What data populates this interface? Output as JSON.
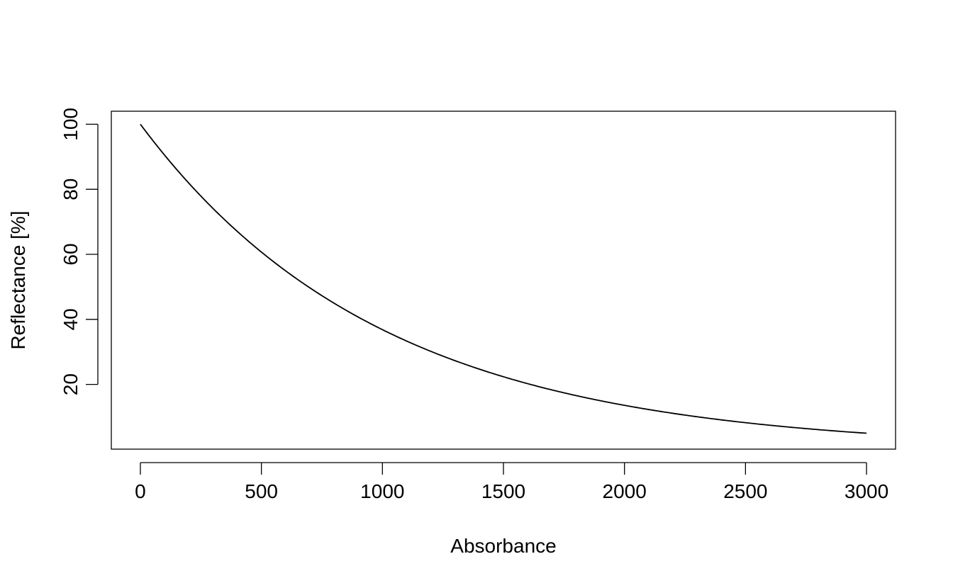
{
  "chart_data": {
    "type": "line",
    "title": "",
    "xlabel": "Absorbance",
    "ylabel": "Reflectance [%]",
    "xlim": [
      -120,
      3120
    ],
    "ylim": [
      0.1,
      104
    ],
    "x_ticks": [
      0,
      500,
      1000,
      1500,
      2000,
      2500,
      3000
    ],
    "x_tick_labels": [
      "0",
      "500",
      "1000",
      "1500",
      "2000",
      "2500",
      "3000"
    ],
    "y_ticks": [
      20,
      40,
      60,
      80,
      100
    ],
    "y_tick_labels": [
      "20",
      "40",
      "60",
      "80",
      "100"
    ],
    "grid": false,
    "legend": "none",
    "line_color": "#000000",
    "series": [
      {
        "x": [
          0,
          100,
          200,
          300,
          400,
          500,
          600,
          700,
          800,
          900,
          1000,
          1100,
          1200,
          1300,
          1400,
          1500,
          1600,
          1700,
          1800,
          1900,
          2000,
          2100,
          2200,
          2300,
          2400,
          2500,
          2600,
          2700,
          2800,
          2900,
          3000
        ],
        "y": [
          100,
          90.5,
          81.9,
          74.1,
          67.0,
          60.7,
          54.9,
          49.7,
          44.9,
          40.7,
          36.8,
          33.3,
          30.1,
          27.3,
          24.7,
          22.3,
          20.2,
          18.3,
          16.5,
          15.0,
          13.5,
          12.2,
          11.1,
          10.0,
          9.1,
          8.2,
          7.4,
          6.7,
          6.1,
          5.5,
          5.0
        ]
      }
    ]
  }
}
